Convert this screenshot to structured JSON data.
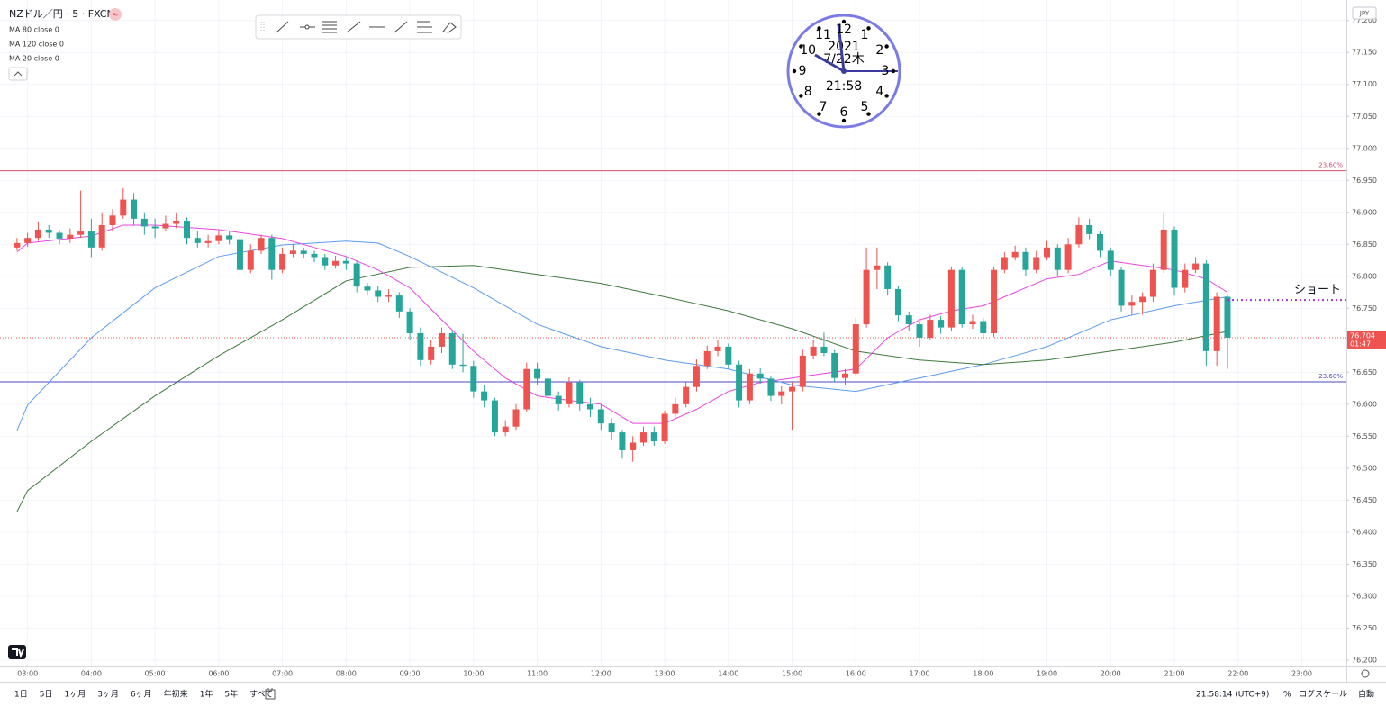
{
  "chart_data": {
    "type": "candlestick",
    "title": "NZドル／円 · 5 · FXCM",
    "currency_badge": "JPY",
    "up_color": "#ef5350",
    "down_color": "#26a69a",
    "grid": true,
    "xlim": [
      "02:34",
      "23:42"
    ],
    "ylim": [
      76.19,
      77.232
    ],
    "xticks": [
      "03:00",
      "04:00",
      "05:00",
      "06:00",
      "07:00",
      "08:00",
      "09:00",
      "10:00",
      "11:00",
      "12:00",
      "13:00",
      "14:00",
      "15:00",
      "16:00",
      "17:00",
      "18:00",
      "19:00",
      "20:00",
      "21:00",
      "22:00",
      "23:00"
    ],
    "yticks": [
      {
        "value": 76.2,
        "label": "76.200"
      },
      {
        "value": 76.25,
        "label": "76.250"
      },
      {
        "value": 76.3,
        "label": "76.300"
      },
      {
        "value": 76.35,
        "label": "76.350"
      },
      {
        "value": 76.4,
        "label": "76.400"
      },
      {
        "value": 76.45,
        "label": "76.450"
      },
      {
        "value": 76.5,
        "label": "76.500"
      },
      {
        "value": 76.55,
        "label": "76.550"
      },
      {
        "value": 76.6,
        "label": "76.600"
      },
      {
        "value": 76.65,
        "label": "76.650"
      },
      {
        "value": 76.7,
        "label": "76.700"
      },
      {
        "value": 76.75,
        "label": "76.750"
      },
      {
        "value": 76.8,
        "label": "76.800"
      },
      {
        "value": 76.85,
        "label": "76.850"
      },
      {
        "value": 76.9,
        "label": "76.900"
      },
      {
        "value": 76.95,
        "label": "76.950"
      },
      {
        "value": 77.0,
        "label": "77.000"
      },
      {
        "value": 77.05,
        "label": "77.050"
      },
      {
        "value": 77.1,
        "label": "77.100"
      },
      {
        "value": 77.15,
        "label": "77.150"
      },
      {
        "value": 77.2,
        "label": "77.200"
      }
    ],
    "x": [
      "02:50",
      "03:00",
      "03:10",
      "03:20",
      "03:30",
      "03:40",
      "03:50",
      "04:00",
      "04:10",
      "04:20",
      "04:30",
      "04:40",
      "04:50",
      "05:00",
      "05:10",
      "05:20",
      "05:30",
      "05:40",
      "05:50",
      "06:00",
      "06:10",
      "06:20",
      "06:30",
      "06:40",
      "06:50",
      "07:00",
      "07:10",
      "07:20",
      "07:30",
      "07:40",
      "07:50",
      "08:00",
      "08:10",
      "08:20",
      "08:30",
      "08:40",
      "08:50",
      "09:00",
      "09:10",
      "09:20",
      "09:30",
      "09:40",
      "09:50",
      "10:00",
      "10:10",
      "10:20",
      "10:30",
      "10:40",
      "10:50",
      "11:00",
      "11:10",
      "11:20",
      "11:30",
      "11:40",
      "11:50",
      "12:00",
      "12:10",
      "12:20",
      "12:30",
      "12:40",
      "12:50",
      "13:00",
      "13:10",
      "13:20",
      "13:30",
      "13:40",
      "13:50",
      "14:00",
      "14:10",
      "14:20",
      "14:30",
      "14:40",
      "14:50",
      "15:00",
      "15:10",
      "15:20",
      "15:30",
      "15:40",
      "15:50",
      "16:00",
      "16:10",
      "16:20",
      "16:30",
      "16:40",
      "16:50",
      "17:00",
      "17:10",
      "17:20",
      "17:30",
      "17:40",
      "17:50",
      "18:00",
      "18:10",
      "18:20",
      "18:30",
      "18:40",
      "18:50",
      "19:00",
      "19:10",
      "19:20",
      "19:30",
      "19:40",
      "19:50",
      "20:00",
      "20:10",
      "20:20",
      "20:30",
      "20:40",
      "20:50",
      "21:00",
      "21:10",
      "21:20",
      "21:30",
      "21:40",
      "21:50"
    ],
    "open": [
      76.845,
      76.852,
      76.86,
      76.873,
      76.868,
      76.859,
      76.865,
      76.87,
      76.845,
      76.88,
      76.895,
      76.92,
      76.89,
      76.878,
      76.875,
      76.882,
      76.887,
      76.86,
      76.852,
      76.855,
      76.864,
      76.858,
      76.81,
      76.84,
      76.86,
      76.81,
      76.835,
      76.84,
      76.835,
      76.83,
      76.817,
      76.824,
      76.82,
      76.784,
      76.778,
      76.768,
      76.77,
      76.745,
      76.711,
      76.669,
      76.69,
      76.711,
      76.662,
      76.66,
      76.62,
      76.606,
      76.556,
      76.565,
      76.592,
      76.655,
      76.64,
      76.613,
      76.6,
      76.634,
      76.6,
      76.592,
      76.57,
      76.556,
      76.528,
      76.54,
      76.556,
      76.542,
      76.585,
      76.6,
      76.627,
      76.66,
      76.683,
      76.69,
      76.662,
      76.606,
      76.648,
      76.64,
      76.613,
      76.62,
      76.627,
      76.676,
      76.69,
      76.68,
      76.641,
      76.648,
      76.725,
      76.81,
      76.817,
      76.78,
      76.739,
      76.725,
      76.704,
      76.732,
      76.72,
      76.81,
      76.725,
      76.73,
      76.711,
      76.81,
      76.83,
      76.838,
      76.81,
      76.83,
      76.845,
      76.81,
      76.85,
      76.88,
      76.866,
      76.84,
      76.81,
      76.754,
      76.76,
      76.768,
      76.81,
      76.873,
      76.782,
      76.81,
      76.82,
      76.683,
      76.768
    ],
    "high": [
      76.86,
      76.868,
      76.885,
      76.88,
      76.872,
      76.875,
      76.934,
      76.89,
      76.9,
      76.905,
      76.938,
      76.93,
      76.9,
      76.89,
      76.895,
      76.9,
      76.892,
      76.87,
      76.865,
      76.872,
      76.87,
      76.862,
      76.85,
      76.865,
      76.865,
      76.845,
      76.85,
      76.845,
      76.84,
      76.835,
      76.832,
      76.83,
      76.825,
      76.79,
      76.785,
      76.78,
      76.775,
      76.75,
      76.72,
      76.7,
      76.72,
      76.715,
      76.71,
      76.668,
      76.63,
      76.61,
      76.575,
      76.6,
      76.665,
      76.665,
      76.645,
      76.62,
      76.642,
      76.638,
      76.61,
      76.6,
      76.578,
      76.56,
      76.55,
      76.565,
      76.565,
      76.59,
      76.61,
      76.635,
      76.67,
      76.692,
      76.7,
      76.695,
      76.668,
      76.655,
      76.656,
      76.645,
      76.628,
      76.635,
      76.685,
      76.7,
      76.712,
      76.685,
      76.655,
      76.735,
      76.845,
      76.845,
      76.822,
      76.785,
      76.745,
      76.73,
      76.74,
      76.738,
      76.815,
      76.815,
      76.74,
      76.735,
      76.815,
      76.838,
      76.848,
      76.845,
      76.84,
      76.855,
      76.85,
      76.86,
      76.892,
      76.89,
      76.87,
      76.845,
      76.815,
      76.77,
      76.775,
      76.82,
      76.9,
      76.878,
      76.82,
      76.83,
      76.825,
      76.775,
      76.772
    ],
    "low": [
      76.84,
      76.846,
      76.855,
      76.86,
      76.85,
      76.852,
      76.86,
      76.83,
      76.84,
      76.87,
      76.89,
      76.88,
      76.865,
      76.86,
      76.87,
      76.875,
      76.85,
      76.845,
      76.845,
      76.85,
      76.85,
      76.8,
      76.805,
      76.835,
      76.795,
      76.805,
      76.83,
      76.828,
      76.822,
      76.81,
      76.812,
      76.81,
      76.775,
      76.77,
      76.76,
      76.76,
      76.735,
      76.7,
      76.66,
      76.662,
      76.68,
      76.655,
      76.65,
      76.61,
      76.595,
      76.55,
      76.55,
      76.56,
      76.588,
      76.63,
      76.6,
      76.59,
      76.595,
      76.59,
      76.58,
      76.56,
      76.545,
      76.515,
      76.51,
      76.535,
      76.535,
      76.538,
      76.58,
      76.595,
      76.62,
      76.655,
      76.675,
      76.655,
      76.595,
      76.6,
      76.632,
      76.605,
      76.6,
      76.56,
      76.62,
      76.67,
      76.675,
      76.635,
      76.63,
      76.645,
      76.72,
      76.78,
      76.77,
      76.73,
      76.715,
      76.69,
      76.7,
      76.71,
      76.715,
      76.72,
      76.718,
      76.705,
      76.705,
      76.805,
      76.825,
      76.8,
      76.805,
      76.825,
      76.8,
      76.805,
      76.845,
      76.858,
      76.83,
      76.8,
      76.745,
      76.74,
      76.74,
      76.76,
      76.805,
      76.77,
      76.775,
      76.805,
      76.66,
      76.66,
      76.655
    ],
    "close": [
      76.852,
      76.86,
      76.873,
      76.868,
      76.859,
      76.865,
      76.87,
      76.845,
      76.88,
      76.895,
      76.92,
      76.89,
      76.878,
      76.875,
      76.882,
      76.887,
      76.86,
      76.852,
      76.855,
      76.864,
      76.858,
      76.81,
      76.84,
      76.86,
      76.81,
      76.835,
      76.84,
      76.835,
      76.83,
      76.817,
      76.824,
      76.82,
      76.784,
      76.778,
      76.768,
      76.77,
      76.745,
      76.711,
      76.669,
      76.69,
      76.711,
      76.662,
      76.66,
      76.62,
      76.606,
      76.556,
      76.565,
      76.592,
      76.655,
      76.64,
      76.613,
      76.6,
      76.634,
      76.6,
      76.592,
      76.57,
      76.556,
      76.528,
      76.54,
      76.556,
      76.542,
      76.585,
      76.6,
      76.627,
      76.66,
      76.683,
      76.69,
      76.662,
      76.606,
      76.648,
      76.64,
      76.613,
      76.62,
      76.627,
      76.676,
      76.69,
      76.68,
      76.641,
      76.648,
      76.725,
      76.81,
      76.817,
      76.78,
      76.739,
      76.725,
      76.704,
      76.732,
      76.72,
      76.81,
      76.725,
      76.73,
      76.711,
      76.81,
      76.83,
      76.838,
      76.81,
      76.83,
      76.845,
      76.81,
      76.85,
      76.88,
      76.866,
      76.84,
      76.81,
      76.754,
      76.76,
      76.768,
      76.81,
      76.873,
      76.782,
      76.81,
      76.82,
      76.683,
      76.768,
      76.704
    ],
    "series": [
      {
        "name": "MA 80 close 0",
        "color": "#5b9cf0",
        "x": [
          "02:50",
          "03:00",
          "04:00",
          "05:00",
          "06:00",
          "07:00",
          "08:00",
          "08:30",
          "09:00",
          "10:00",
          "11:00",
          "12:00",
          "13:00",
          "14:00",
          "15:00",
          "16:00",
          "17:00",
          "18:00",
          "19:00",
          "20:00",
          "21:00",
          "21:50"
        ],
        "values": [
          76.559,
          76.599,
          76.704,
          76.782,
          76.831,
          76.849,
          76.855,
          76.852,
          76.831,
          76.782,
          76.725,
          76.69,
          76.669,
          76.655,
          76.63,
          76.62,
          76.641,
          76.662,
          76.69,
          76.732,
          76.754,
          76.768
        ]
      },
      {
        "name": "MA 120 close 0",
        "color": "#3d7a3d",
        "x": [
          "02:50",
          "03:00",
          "04:00",
          "05:00",
          "06:00",
          "07:00",
          "08:00",
          "09:00",
          "10:00",
          "11:00",
          "12:00",
          "13:00",
          "14:00",
          "15:00",
          "16:00",
          "17:00",
          "18:00",
          "19:00",
          "20:00",
          "21:00",
          "21:50"
        ],
        "values": [
          76.432,
          76.465,
          76.542,
          76.613,
          76.676,
          76.732,
          76.793,
          76.814,
          76.817,
          76.803,
          76.789,
          76.768,
          76.746,
          76.718,
          76.683,
          76.669,
          76.662,
          76.669,
          76.683,
          76.697,
          76.714
        ]
      },
      {
        "name": "MA 20 close 0",
        "color": "#e845e0",
        "x": [
          "02:50",
          "03:00",
          "04:00",
          "04:30",
          "05:00",
          "06:00",
          "07:00",
          "07:30",
          "08:00",
          "08:30",
          "09:00",
          "09:30",
          "10:00",
          "10:30",
          "11:00",
          "11:30",
          "12:00",
          "12:30",
          "13:00",
          "13:30",
          "14:00",
          "14:30",
          "15:00",
          "15:30",
          "16:00",
          "16:30",
          "17:00",
          "17:30",
          "18:00",
          "18:30",
          "19:00",
          "19:30",
          "20:00",
          "20:30",
          "21:00",
          "21:30",
          "21:50"
        ],
        "values": [
          76.838,
          76.852,
          76.863,
          76.88,
          76.88,
          76.873,
          76.859,
          76.845,
          76.831,
          76.81,
          76.782,
          76.732,
          76.683,
          76.641,
          76.613,
          76.606,
          76.6,
          76.57,
          76.57,
          76.592,
          76.62,
          76.634,
          76.641,
          76.648,
          76.655,
          76.704,
          76.732,
          76.746,
          76.754,
          76.775,
          76.796,
          76.803,
          76.824,
          76.817,
          76.81,
          76.796,
          76.775
        ]
      }
    ],
    "levels": [
      {
        "value": 76.965,
        "label": "23.60%",
        "color": "#d0506e"
      },
      {
        "value": 76.635,
        "label": "23.60%",
        "color": "#4a4ac8"
      }
    ],
    "last_price": 76.704,
    "countdown": "01:47",
    "annotation": {
      "text": "ショート",
      "value": 76.763,
      "color": "#9b30e0"
    }
  },
  "clock": {
    "year": "2021",
    "date": "7/22木",
    "time": "21:58",
    "numerals": [
      "12",
      "1",
      "2",
      "3",
      "4",
      "5",
      "6",
      "7",
      "8",
      "9",
      "10",
      "11"
    ]
  },
  "bottom_bar": {
    "ranges": [
      "1日",
      "5日",
      "1ヶ月",
      "3ヶ月",
      "6ヶ月",
      "年初来",
      "1年",
      "5年",
      "すべて"
    ],
    "timestamp": "21:58:14 (UTC+9)",
    "percent": "%",
    "log_scale": "ログスケール",
    "auto": "自動"
  }
}
